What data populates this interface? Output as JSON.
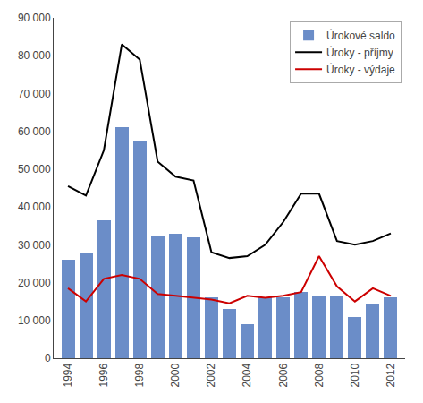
{
  "chart_data": {
    "type": "bar",
    "x": [
      1994,
      1995,
      1996,
      1997,
      1998,
      1999,
      2000,
      2001,
      2002,
      2003,
      2004,
      2005,
      2006,
      2007,
      2008,
      2009,
      2010,
      2011,
      2012
    ],
    "series": [
      {
        "name": "Úrokové saldo",
        "type": "bar",
        "color": "#6B8DC8",
        "values": [
          26000,
          28000,
          36500,
          61000,
          57500,
          32500,
          33000,
          32000,
          16000,
          13000,
          9000,
          16000,
          16000,
          17500,
          16500,
          16500,
          11000,
          14500,
          16000
        ]
      },
      {
        "name": "Úroky - příjmy",
        "type": "line",
        "color": "#000000",
        "values": [
          45500,
          43000,
          55000,
          83000,
          79000,
          52000,
          48000,
          47000,
          28000,
          26500,
          27000,
          30000,
          36000,
          43500,
          43500,
          31000,
          30000,
          31000,
          33000
        ]
      },
      {
        "name": "Úroky - výdaje",
        "type": "line",
        "color": "#CC0000",
        "values": [
          18500,
          15000,
          21000,
          22000,
          21000,
          17000,
          16500,
          16000,
          15500,
          14500,
          16500,
          16000,
          16500,
          17500,
          27000,
          19000,
          15000,
          18500,
          16500
        ]
      }
    ],
    "xlim": [
      1993.2,
      2012.8
    ],
    "xticks": [
      1994,
      1996,
      1998,
      2000,
      2002,
      2004,
      2006,
      2008,
      2010,
      2012
    ],
    "ylim": [
      0,
      90000
    ],
    "yticks": [
      0,
      {
        "value": 10000,
        "label": "10 000"
      },
      {
        "value": 20000,
        "label": "20 000"
      },
      {
        "value": 30000,
        "label": "30 000"
      },
      {
        "value": 40000,
        "label": "40 000"
      },
      {
        "value": 50000,
        "label": "50 000"
      },
      {
        "value": 60000,
        "label": "60 000"
      },
      {
        "value": 70000,
        "label": "70 000"
      },
      {
        "value": 80000,
        "label": "80 000"
      },
      {
        "value": 90000,
        "label": "90 000"
      }
    ],
    "grid": false,
    "legend": "upper right"
  }
}
